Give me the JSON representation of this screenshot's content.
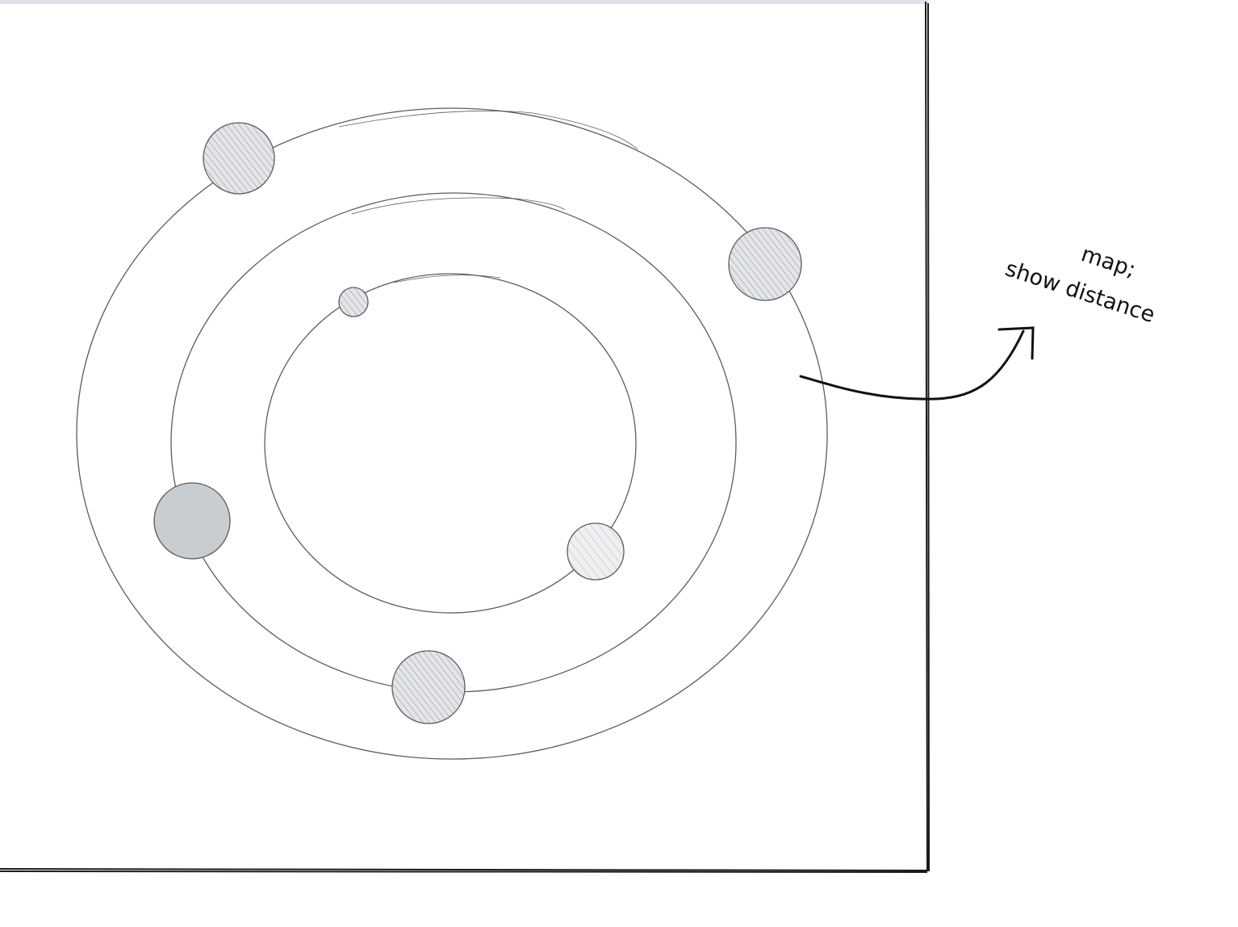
{
  "annotation": {
    "line1": "map;",
    "line2": "show distance"
  },
  "colors": {
    "stroke": "#5c5c5c",
    "frame": "#1a1a1a",
    "planet_fill": "#e3e5e8",
    "planet_fill_solid": "#c8cdd2",
    "hatch": "#8a8f94",
    "arrow": "#111111",
    "top_bar": "#dde3e8"
  },
  "diagram": {
    "planet_count": 6,
    "orbit_count": 3
  }
}
